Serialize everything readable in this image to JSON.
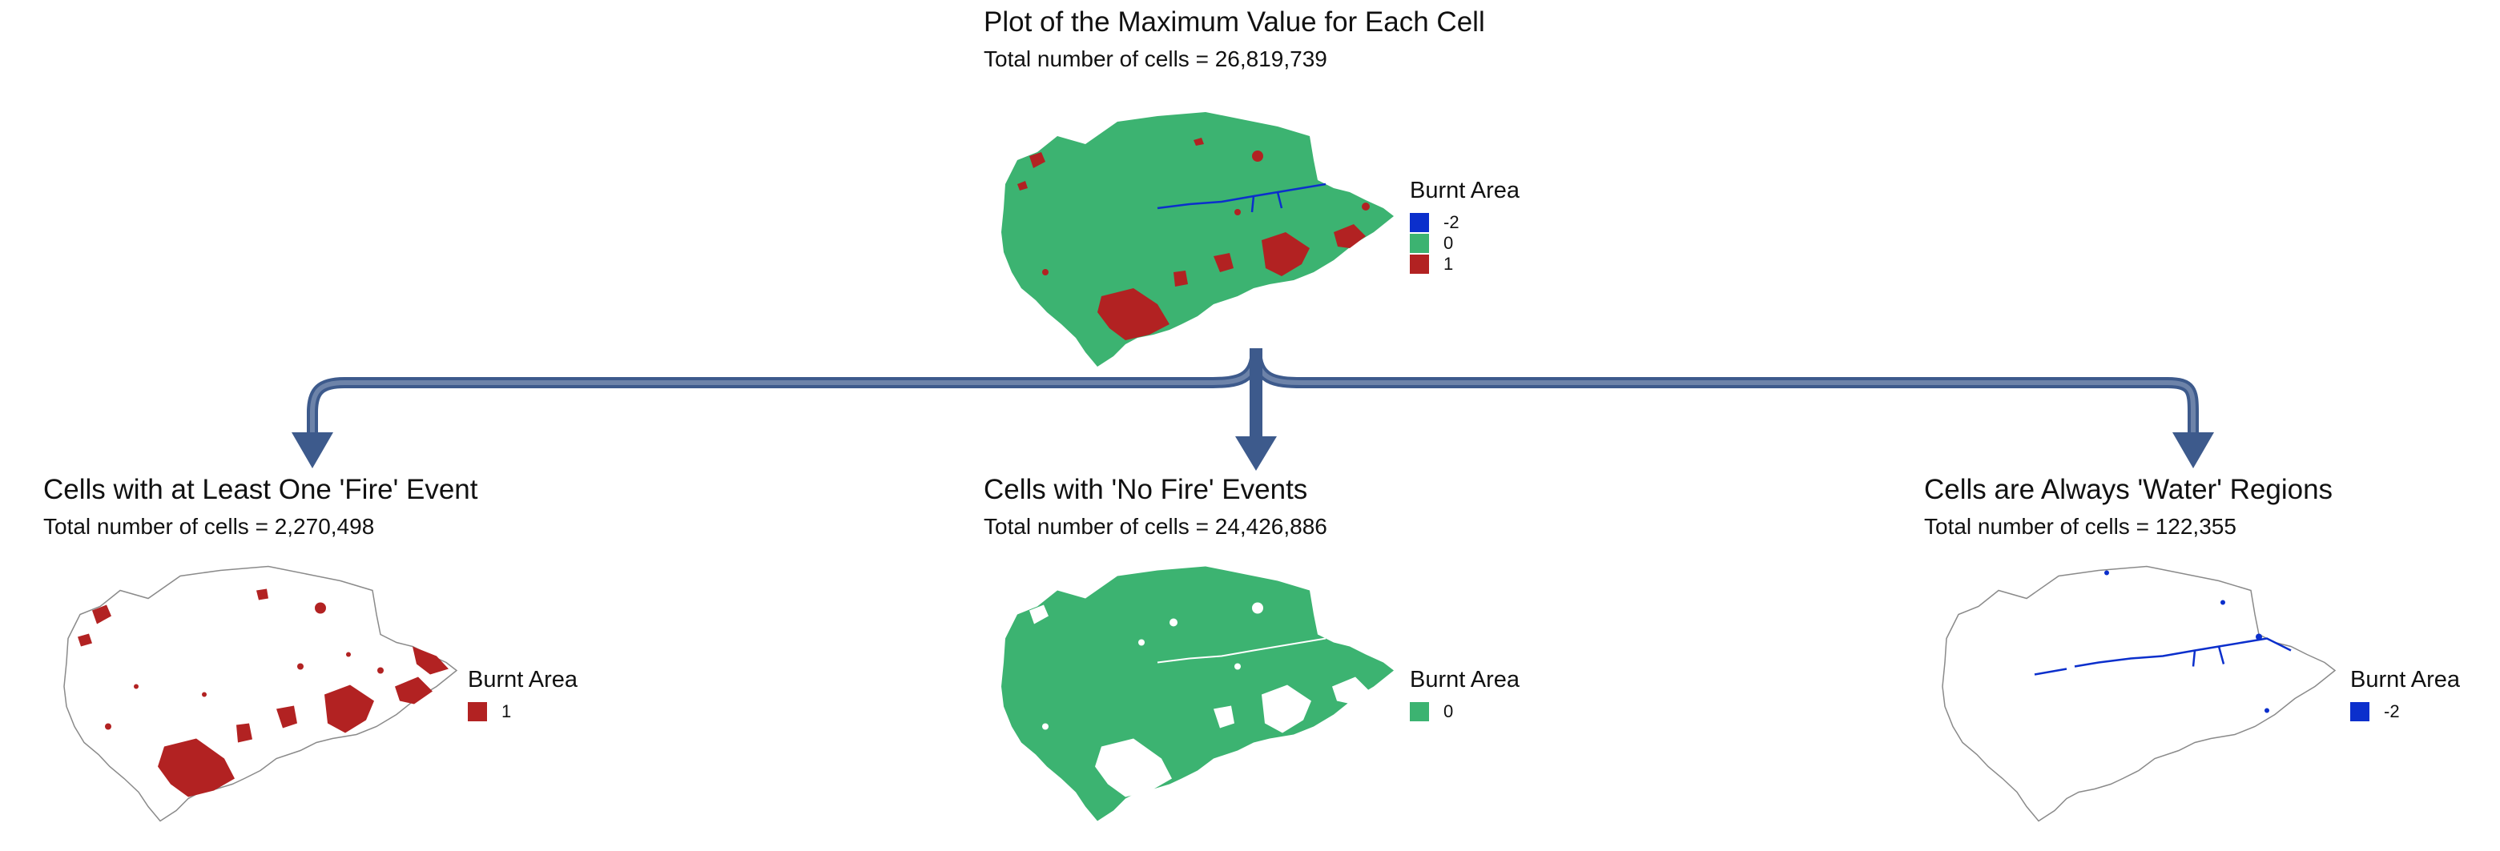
{
  "colors": {
    "water": "#0b2fcc",
    "no_fire": "#3cb371",
    "fire": "#b22222",
    "arrow": "#3d5a8c",
    "outline": "#8a8a8a"
  },
  "top": {
    "title": "Plot of the Maximum Value for Each Cell",
    "subtitle": "Total number of cells = 26,819,739",
    "legend": {
      "title": "Burnt Area",
      "items": [
        {
          "label": "-2",
          "color": "#0b2fcc"
        },
        {
          "label": "0",
          "color": "#3cb371"
        },
        {
          "label": "1",
          "color": "#b22222"
        }
      ]
    }
  },
  "left": {
    "title": "Cells with at Least One 'Fire' Event",
    "subtitle": "Total number of cells = 2,270,498",
    "legend": {
      "title": "Burnt Area",
      "items": [
        {
          "label": "1",
          "color": "#b22222"
        }
      ]
    }
  },
  "middle": {
    "title": "Cells with 'No Fire' Events",
    "subtitle": "Total number of cells = 24,426,886",
    "legend": {
      "title": "Burnt Area",
      "items": [
        {
          "label": "0",
          "color": "#3cb371"
        }
      ]
    }
  },
  "right": {
    "title": "Cells are Always 'Water' Regions",
    "subtitle": "Total number of cells = 122,355",
    "legend": {
      "title": "Burnt Area",
      "items": [
        {
          "label": "-2",
          "color": "#0b2fcc"
        }
      ]
    }
  }
}
